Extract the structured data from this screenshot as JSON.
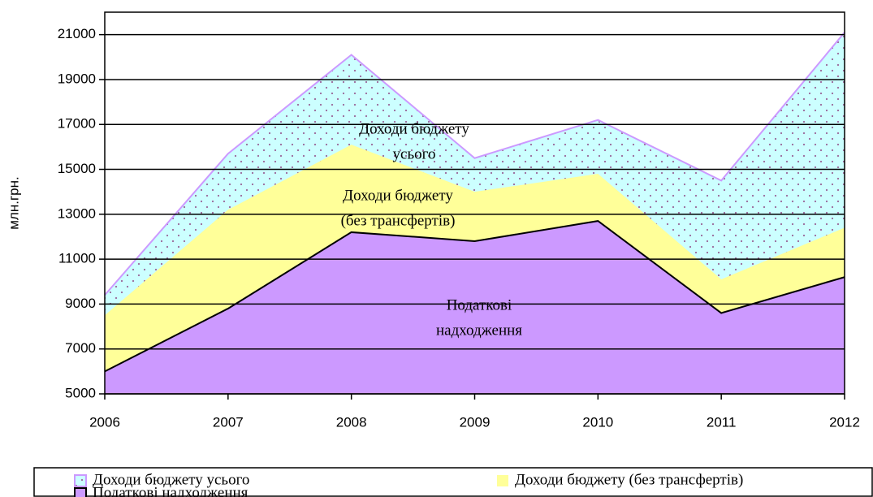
{
  "chart_data": {
    "type": "area",
    "y_label": "млн.грн.",
    "categories": [
      "2006",
      "2007",
      "2008",
      "2009",
      "2010",
      "2011",
      "2012"
    ],
    "series": [
      {
        "name": "Доходи бюджету усього",
        "color": "#ccffff",
        "stroke": "#cc99ff",
        "pattern": "dots",
        "values": [
          9400,
          15700,
          20100,
          15500,
          17200,
          14500,
          21100
        ]
      },
      {
        "name": "Доходи бюджету (без трансфертів)",
        "color": "#ffff99",
        "values": [
          8500,
          13200,
          16100,
          14000,
          14800,
          10100,
          12400
        ]
      },
      {
        "name": "Податкові надходження",
        "color": "#cc99ff",
        "stroke": "#000000",
        "values": [
          6000,
          8800,
          12200,
          11800,
          12700,
          8600,
          10200
        ]
      }
    ],
    "annotations": [
      [
        "Доходи бюджету",
        "усього"
      ],
      [
        "Доходи бюджету",
        "(без трансфертів)"
      ],
      [
        "Податкові",
        "надходження"
      ]
    ],
    "ylim": [
      5000,
      22000
    ],
    "yticks": [
      5000,
      7000,
      9000,
      11000,
      13000,
      15000,
      17000,
      19000,
      21000
    ],
    "grid": true
  }
}
